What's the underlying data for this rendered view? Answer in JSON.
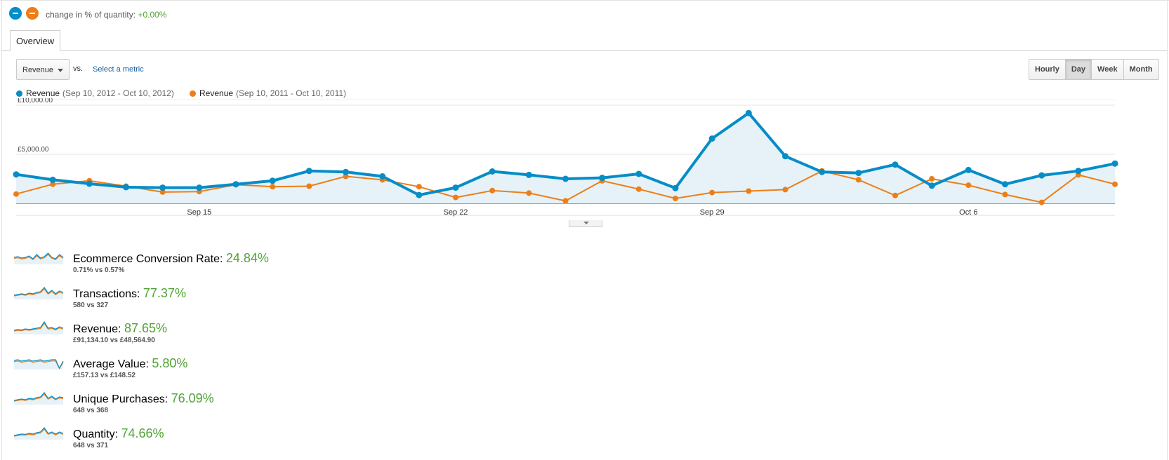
{
  "header": {
    "segment_colors": [
      "#058dc7",
      "#ed7e17"
    ],
    "change_label": "change in % of quantity:",
    "change_value": "+0.00%"
  },
  "tabs": [
    {
      "label": "Overview",
      "active": true
    }
  ],
  "controls": {
    "metric_dropdown": "Revenue",
    "vs_label": "vs.",
    "select_metric_link": "Select a metric",
    "periods": [
      {
        "label": "Hourly",
        "active": false
      },
      {
        "label": "Day",
        "active": true
      },
      {
        "label": "Week",
        "active": false
      },
      {
        "label": "Month",
        "active": false
      }
    ]
  },
  "chart_data": {
    "type": "line",
    "legend": [
      {
        "name": "Revenue",
        "range": "(Sep 10, 2012 - Oct 10, 2012)",
        "color": "#058dc7"
      },
      {
        "name": "Revenue",
        "range": "(Sep 10, 2011 - Oct 10, 2011)",
        "color": "#ed7e17"
      }
    ],
    "y_ticks": [
      {
        "value": 10000,
        "label": "£10,000.00"
      },
      {
        "value": 5000,
        "label": "£5,000.00"
      }
    ],
    "ylim": [
      0,
      10000
    ],
    "x_ticks": [
      {
        "index": 5,
        "label": "Sep 15"
      },
      {
        "index": 12,
        "label": "Sep 22"
      },
      {
        "index": 19,
        "label": "Sep 29"
      },
      {
        "index": 26,
        "label": "Oct 6"
      }
    ],
    "x_count": 31,
    "area_fill": true,
    "grid": true,
    "series": [
      {
        "name": "Revenue (Sep 10, 2012 - Oct 10, 2012)",
        "color": "#058dc7",
        "values": [
          2950,
          2400,
          2000,
          1650,
          1600,
          1600,
          1950,
          2300,
          3300,
          3200,
          2750,
          850,
          1600,
          3250,
          2900,
          2500,
          2600,
          3000,
          1550,
          6600,
          9200,
          4800,
          3200,
          3100,
          3950,
          1800,
          3400,
          1950,
          2850,
          3300,
          4050
        ]
      },
      {
        "name": "Revenue (Sep 10, 2011 - Oct 10, 2011)",
        "color": "#ed7e17",
        "values": [
          950,
          1950,
          2300,
          1750,
          1150,
          1200,
          1900,
          1700,
          1750,
          2750,
          2400,
          1700,
          600,
          1300,
          1050,
          250,
          2300,
          1450,
          500,
          1100,
          1250,
          1400,
          3300,
          2400,
          800,
          2500,
          1850,
          900,
          100,
          2900,
          1950
        ]
      }
    ]
  },
  "metrics": [
    {
      "name": "Ecommerce Conversion Rate:",
      "pct": "24.84%",
      "compare": "0.71% vs 0.57%"
    },
    {
      "name": "Transactions:",
      "pct": "77.37%",
      "compare": "580 vs 327"
    },
    {
      "name": "Revenue:",
      "pct": "87.65%",
      "compare": "£91,134.10 vs £48,564.90"
    },
    {
      "name": "Average Value:",
      "pct": "5.80%",
      "compare": "£157.13 vs £148.52"
    },
    {
      "name": "Unique Purchases:",
      "pct": "76.09%",
      "compare": "648 vs 368"
    },
    {
      "name": "Quantity:",
      "pct": "74.66%",
      "compare": "648 vs 371"
    }
  ]
}
